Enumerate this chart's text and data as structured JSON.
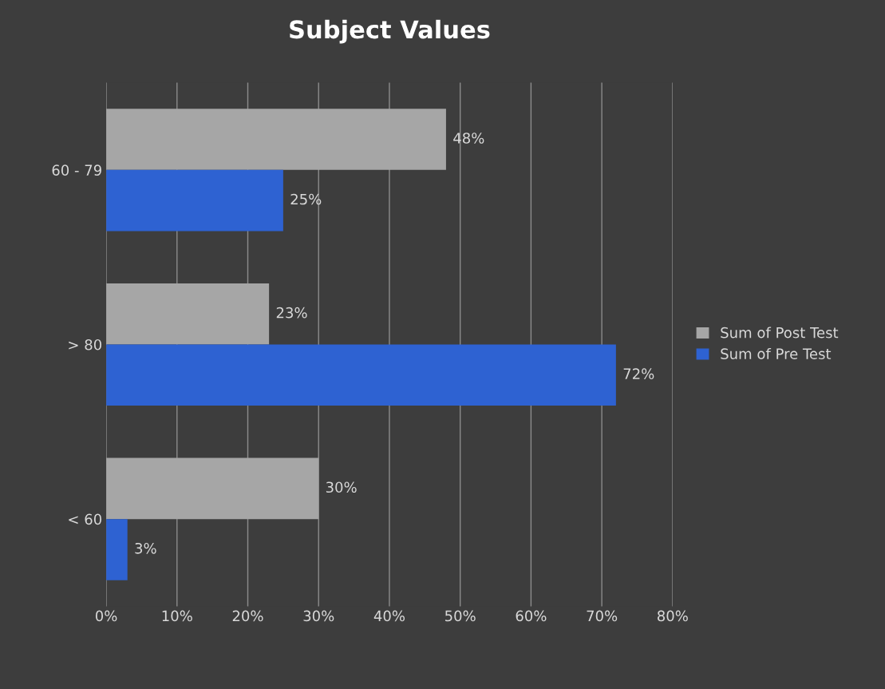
{
  "chart_data": {
    "type": "bar",
    "orientation": "horizontal",
    "title": "Subject Values",
    "categories": [
      "60 - 79",
      "> 80",
      "< 60"
    ],
    "series": [
      {
        "name": "Sum of Post Test",
        "color": "#a6a6a6",
        "values": [
          48,
          23,
          30
        ],
        "value_labels": [
          "48%",
          "23%",
          "30%"
        ]
      },
      {
        "name": "Sum of Pre Test",
        "color": "#2e62d2",
        "values": [
          25,
          72,
          3
        ],
        "value_labels": [
          "25%",
          "72%",
          "3%"
        ]
      }
    ],
    "xlim": [
      0,
      80
    ],
    "xticks": [
      {
        "value": 0,
        "label": "0%"
      },
      {
        "value": 10,
        "label": "10%"
      },
      {
        "value": 20,
        "label": "20%"
      },
      {
        "value": 30,
        "label": "30%"
      },
      {
        "value": 40,
        "label": "40%"
      },
      {
        "value": 50,
        "label": "50%"
      },
      {
        "value": 60,
        "label": "60%"
      },
      {
        "value": 70,
        "label": "70%"
      },
      {
        "value": 80,
        "label": "80%"
      }
    ],
    "grid": "x",
    "legend": "right"
  }
}
